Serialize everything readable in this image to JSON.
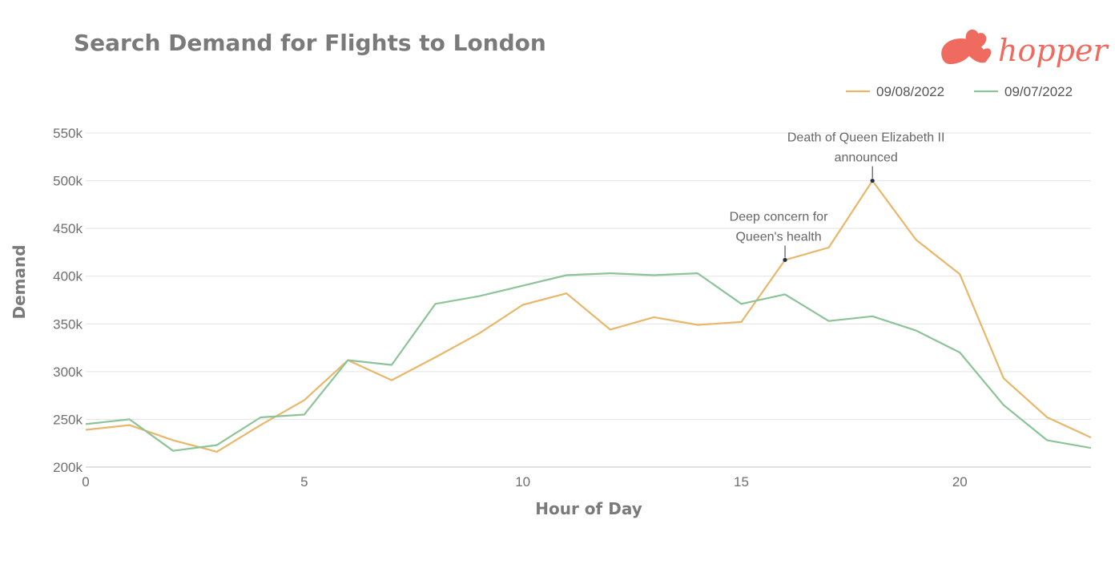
{
  "chart_data": {
    "type": "line",
    "title": "Search Demand for Flights to London",
    "xlabel": "Hour of Day",
    "ylabel": "Demand",
    "x": [
      0,
      1,
      2,
      3,
      4,
      5,
      6,
      7,
      8,
      9,
      10,
      11,
      12,
      13,
      14,
      15,
      16,
      17,
      18,
      19,
      20,
      21,
      22,
      23
    ],
    "xticks": [
      0,
      5,
      10,
      15,
      20
    ],
    "xlim": [
      0,
      23
    ],
    "ylim": [
      200000,
      550000
    ],
    "yticks": [
      200000,
      250000,
      300000,
      350000,
      400000,
      450000,
      500000,
      550000
    ],
    "ytick_labels": [
      "200k",
      "250k",
      "300k",
      "350k",
      "400k",
      "450k",
      "500k",
      "550k"
    ],
    "grid": true,
    "legend_position": "top-right",
    "series": [
      {
        "name": "09/08/2022",
        "color": "#e8b76a",
        "values": [
          239000,
          244000,
          228000,
          216000,
          244000,
          270000,
          312000,
          291000,
          315000,
          340000,
          370000,
          382000,
          344000,
          357000,
          349000,
          352000,
          417000,
          430000,
          500000,
          438000,
          402000,
          293000,
          252000,
          231000
        ]
      },
      {
        "name": "09/07/2022",
        "color": "#8cc497",
        "values": [
          245000,
          250000,
          217000,
          223000,
          252000,
          255000,
          312000,
          307000,
          371000,
          379000,
          390000,
          401000,
          403000,
          401000,
          403000,
          371000,
          381000,
          353000,
          358000,
          343000,
          320000,
          265000,
          228000,
          220000
        ]
      }
    ],
    "annotations": [
      {
        "series": 0,
        "x": 16,
        "y": 417000,
        "lines": [
          "Deep concern for",
          "Queen's health"
        ]
      },
      {
        "series": 0,
        "x": 18,
        "y": 500000,
        "lines": [
          "Death of Queen Elizabeth II",
          "announced"
        ]
      }
    ]
  },
  "brand": {
    "name": "hopper",
    "color": "#ef6a5f"
  }
}
